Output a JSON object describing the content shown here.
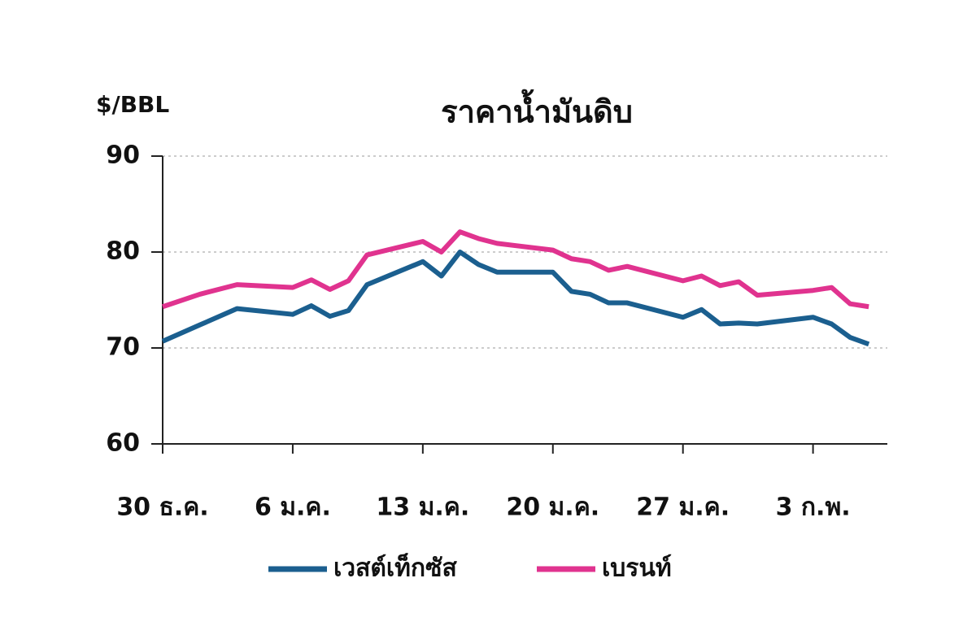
{
  "chart_data": {
    "type": "line",
    "title": "ราคาน้ำมันดิบ",
    "y_label": "$/BBL",
    "x": [
      0,
      2,
      4,
      7,
      8,
      9,
      10,
      11,
      14,
      15,
      16,
      17,
      18,
      21,
      22,
      23,
      24,
      25,
      28,
      29,
      30,
      31,
      32,
      35,
      36,
      37,
      38
    ],
    "series": [
      {
        "name": "เวสต์เท็กซัส",
        "color": "#1b5f8f",
        "values": [
          70.7,
          72.4,
          74.1,
          73.5,
          74.4,
          73.3,
          73.9,
          76.6,
          79.0,
          77.5,
          80.0,
          78.7,
          77.9,
          77.9,
          75.9,
          75.6,
          74.7,
          74.7,
          73.2,
          74.0,
          72.5,
          72.6,
          72.5,
          73.2,
          72.5,
          71.1,
          70.4
        ]
      },
      {
        "name": "เบรนท์",
        "color": "#e0338f",
        "values": [
          74.3,
          75.6,
          76.6,
          76.3,
          77.1,
          76.1,
          77.0,
          79.7,
          81.1,
          80.0,
          82.1,
          81.4,
          80.9,
          80.2,
          79.3,
          79.0,
          78.1,
          78.5,
          77.0,
          77.5,
          76.5,
          76.9,
          75.5,
          76.0,
          76.3,
          74.6,
          74.3
        ]
      }
    ],
    "xlim": [
      0,
      39
    ],
    "xticks": [
      {
        "value": 0,
        "label": "30 ธ.ค."
      },
      {
        "value": 7,
        "label": "6 ม.ค."
      },
      {
        "value": 14,
        "label": "13 ม.ค."
      },
      {
        "value": 21,
        "label": "20 ม.ค."
      },
      {
        "value": 28,
        "label": "27 ม.ค."
      },
      {
        "value": 35,
        "label": "3 ก.พ."
      }
    ],
    "ylim": [
      60,
      90
    ],
    "yticks": [
      60,
      70,
      80,
      90
    ],
    "grid": true,
    "legend": "bottom"
  }
}
